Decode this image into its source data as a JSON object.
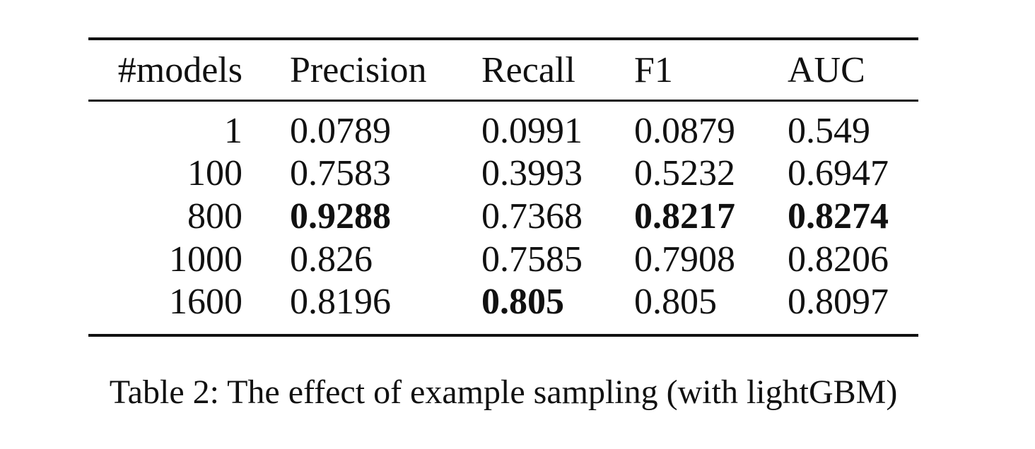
{
  "table": {
    "headers": [
      "#models",
      "Precision",
      "Recall",
      "F1",
      "AUC"
    ],
    "rows": [
      [
        "1",
        "0.0789",
        "0.0991",
        "0.0879",
        "0.549"
      ],
      [
        "100",
        "0.7583",
        "0.3993",
        "0.5232",
        "0.6947"
      ],
      [
        "800",
        "0.9288",
        "0.7368",
        "0.8217",
        "0.8274"
      ],
      [
        "1000",
        "0.826",
        "0.7585",
        "0.7908",
        "0.8206"
      ],
      [
        "1600",
        "0.8196",
        "0.805",
        "0.805",
        "0.8097"
      ]
    ],
    "bold_cells": [
      {
        "row": 2,
        "col": 1
      },
      {
        "row": 2,
        "col": 3
      },
      {
        "row": 2,
        "col": 4
      },
      {
        "row": 4,
        "col": 2
      }
    ]
  },
  "caption": "Table 2: The effect of example sampling (with lightGBM)"
}
